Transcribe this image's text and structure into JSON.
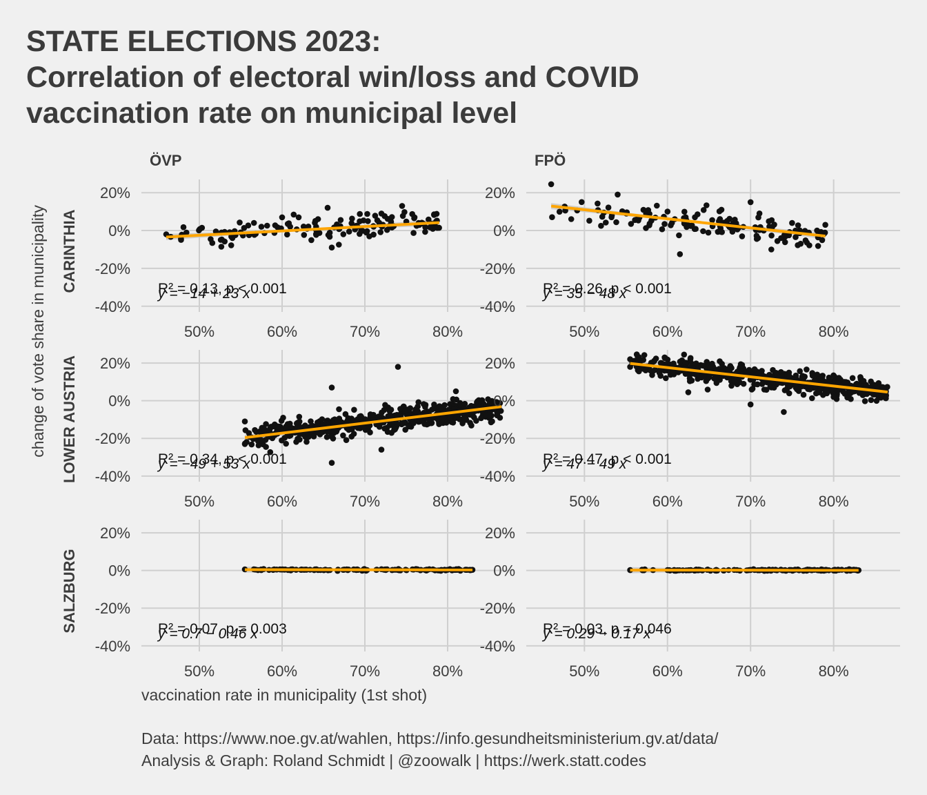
{
  "title": {
    "line1": "STATE ELECTIONS 2023:",
    "line2": "Correlation of electoral win/loss and COVID",
    "line3": "vaccination rate on municipal level"
  },
  "caption": {
    "line1": "Data: https://www.noe.gv.at/wahlen, https://info.gesundheitsministerium.gv.at/data/",
    "line2": "Analysis & Graph: Roland Schmidt | @zoowalk | https://werk.statt.codes"
  },
  "colors": {
    "background": "#f0f0f0",
    "grid": "#cfcfcf",
    "points": "#111111",
    "fit_line": "#ffa500",
    "confidence_band": "#c8c8c8",
    "text": "#3c3c3c"
  },
  "chart_data": {
    "type": "scatter",
    "facet_layout": "grid",
    "columns": [
      "ÖVP",
      "FPÖ"
    ],
    "rows": [
      "CARINTHIA",
      "LOWER AUSTRIA",
      "SALZBURG"
    ],
    "xlabel": "vaccination rate in municipality (1st shot)",
    "ylabel": "change of vote share in municipality",
    "xlim": [
      0.43,
      0.88
    ],
    "ylim": [
      -0.43,
      0.27
    ],
    "x_ticks": [
      0.5,
      0.6,
      0.7,
      0.8
    ],
    "x_tick_labels": [
      "50%",
      "60%",
      "70%",
      "80%"
    ],
    "y_ticks": [
      -0.4,
      -0.2,
      0.0,
      0.2
    ],
    "y_tick_labels": [
      "-40%",
      "-20%",
      "0%",
      "20%"
    ],
    "grid": true,
    "legend": "none",
    "panels": [
      {
        "row": "CARINTHIA",
        "col": "ÖVP",
        "annotation_r2": "R² = 0.13, p < 0.001",
        "annotation_eq": "y = −14 + 23 x",
        "r2": 0.13,
        "p": "< 0.001",
        "intercept": -0.14,
        "slope": 0.23,
        "x_range": [
          0.46,
          0.79
        ],
        "point_count": 130,
        "spread": 0.033,
        "points": [
          [
            0.46,
            -0.02
          ],
          [
            0.52,
            -0.005
          ],
          [
            0.54,
            -0.04
          ],
          [
            0.55,
            -0.01
          ],
          [
            0.575,
            0.02
          ],
          [
            0.6,
            0.07
          ],
          [
            0.62,
            0.07
          ],
          [
            0.655,
            0.12
          ],
          [
            0.66,
            -0.09
          ],
          [
            0.72,
            0.09
          ],
          [
            0.745,
            0.13
          ],
          [
            0.76,
            0.07
          ],
          [
            0.785,
            0.04
          ]
        ]
      },
      {
        "row": "CARINTHIA",
        "col": "FPÖ",
        "annotation_r2": "R² = 0.26, p < 0.001",
        "annotation_eq": "y = 35 − 48 x",
        "r2": 0.26,
        "p": "< 0.001",
        "intercept": 0.35,
        "slope": -0.48,
        "x_range": [
          0.46,
          0.79
        ],
        "point_count": 130,
        "spread": 0.035,
        "points": [
          [
            0.46,
            0.245
          ],
          [
            0.52,
            0.025
          ],
          [
            0.54,
            0.19
          ],
          [
            0.565,
            0.07
          ],
          [
            0.6,
            0.1
          ],
          [
            0.615,
            -0.125
          ],
          [
            0.665,
            0.11
          ],
          [
            0.7,
            0.15
          ],
          [
            0.725,
            -0.1
          ],
          [
            0.75,
            0.04
          ],
          [
            0.78,
            0.0
          ],
          [
            0.79,
            0.03
          ]
        ]
      },
      {
        "row": "LOWER AUSTRIA",
        "col": "ÖVP",
        "annotation_r2": "R² = 0.34, p < 0.001",
        "annotation_eq": "y = −49 + 53 x",
        "r2": 0.34,
        "p": "< 0.001",
        "intercept": -0.49,
        "slope": 0.53,
        "x_range": [
          0.555,
          0.865
        ],
        "point_count": 560,
        "spread": 0.032,
        "points": [
          [
            0.555,
            -0.11
          ],
          [
            0.555,
            -0.23
          ],
          [
            0.575,
            -0.21
          ],
          [
            0.66,
            0.07
          ],
          [
            0.66,
            -0.33
          ],
          [
            0.74,
            0.18
          ],
          [
            0.72,
            -0.26
          ],
          [
            0.81,
            0.05
          ],
          [
            0.86,
            -0.07
          ]
        ]
      },
      {
        "row": "LOWER AUSTRIA",
        "col": "FPÖ",
        "annotation_r2": "R² = 0.47, p < 0.001",
        "annotation_eq": "y = 47 − 49 x",
        "r2": 0.47,
        "p": "< 0.001",
        "intercept": 0.47,
        "slope": -0.49,
        "x_range": [
          0.555,
          0.865
        ],
        "point_count": 560,
        "spread": 0.026,
        "points": [
          [
            0.555,
            0.22
          ],
          [
            0.555,
            0.18
          ],
          [
            0.62,
            0.245
          ],
          [
            0.625,
            0.045
          ],
          [
            0.7,
            -0.02
          ],
          [
            0.74,
            -0.06
          ],
          [
            0.8,
            0.02
          ],
          [
            0.86,
            0.07
          ]
        ]
      },
      {
        "row": "SALZBURG",
        "col": "ÖVP",
        "annotation_r2": "R² = 0.07, p = 0.003",
        "annotation_eq": "y = 0.7 − 0.46 x",
        "r2": 0.07,
        "p": "= 0.003",
        "intercept": 0.007,
        "slope": -0.0046,
        "x_range": [
          0.555,
          0.83
        ],
        "point_count": 119,
        "spread": 0.002,
        "points": [
          [
            0.555,
            0.006
          ],
          [
            0.6,
            0.005
          ],
          [
            0.83,
            0.0035
          ]
        ]
      },
      {
        "row": "SALZBURG",
        "col": "FPÖ",
        "annotation_r2": "R² = 0.03, p = 0.046",
        "annotation_eq": "y = 0.29 − 0.17 x",
        "r2": 0.03,
        "p": "= 0.046",
        "intercept": 0.0029,
        "slope": -0.0017,
        "x_range": [
          0.555,
          0.83
        ],
        "point_count": 119,
        "spread": 0.002,
        "points": [
          [
            0.555,
            0.002
          ],
          [
            0.6,
            0.002
          ],
          [
            0.83,
            0.0015
          ]
        ]
      }
    ]
  }
}
